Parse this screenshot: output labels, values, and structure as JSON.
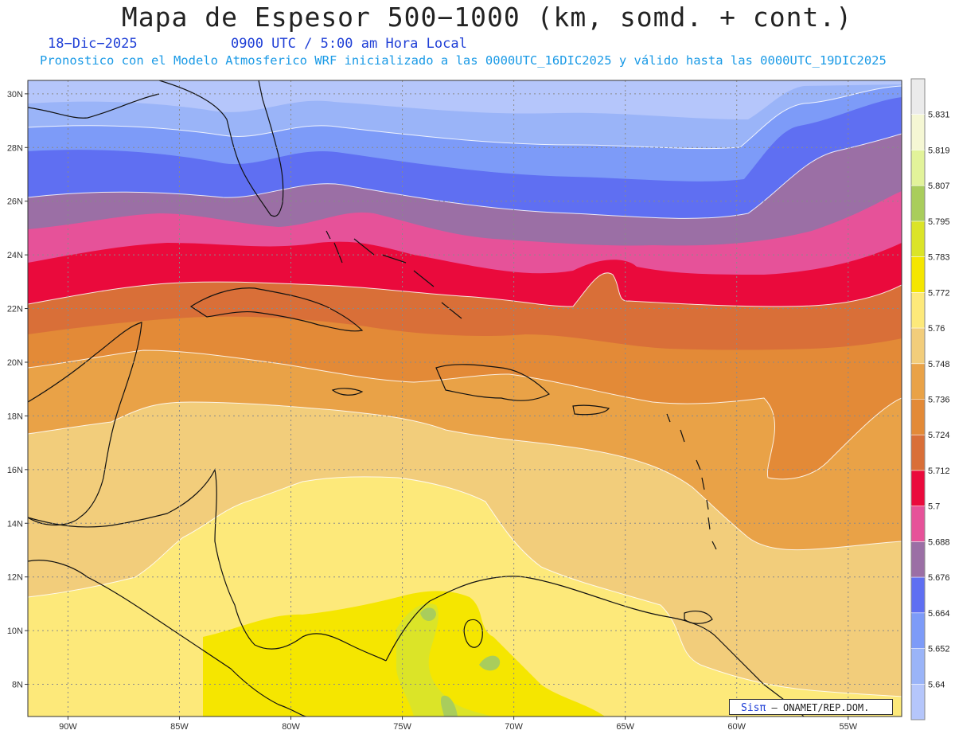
{
  "header": {
    "title": "Mapa de Espesor 500−1000 (km, somd. + cont.)",
    "date": "18−Dic−2025",
    "time": "0900 UTC / 5:00 am Hora Local",
    "description": "Pronostico con el Modelo Atmosferico WRF inicializado a las 0000UTC_16DIC2025 y válido hasta las  0000UTC_19DIC2025"
  },
  "map": {
    "lat_labels": [
      "30N",
      "28N",
      "26N",
      "24N",
      "22N",
      "20N",
      "18N",
      "16N",
      "14N",
      "12N",
      "10N",
      "8N"
    ],
    "lon_labels": [
      "90W",
      "85W",
      "80W",
      "75W",
      "70W",
      "65W",
      "60W",
      "55W"
    ],
    "lat_range": [
      6.8,
      30.5
    ],
    "lon_range": [
      -91.8,
      -52.6
    ],
    "colorbar": {
      "labels": [
        "5.831",
        "5.819",
        "5.807",
        "5.795",
        "5.783",
        "5.772",
        "5.76",
        "5.748",
        "5.736",
        "5.724",
        "5.712",
        "5.7",
        "5.688",
        "5.676",
        "5.664",
        "5.652",
        "5.64"
      ],
      "colors": [
        "#ebebeb",
        "#f5f7d4",
        "#e2f39a",
        "#a9cd5c",
        "#dbe428",
        "#f5e600",
        "#fde97a",
        "#f2cd7b",
        "#e9a247",
        "#e38a37",
        "#d96f38",
        "#ea0a3c",
        "#e65299",
        "#9b6fa5",
        "#5f6ff2",
        "#7d9bf8",
        "#9ab4f8",
        "#b5c6fb"
      ]
    }
  },
  "credit": {
    "brand": "Sisπ",
    "text": "– ONAMET/REP.DOM."
  }
}
